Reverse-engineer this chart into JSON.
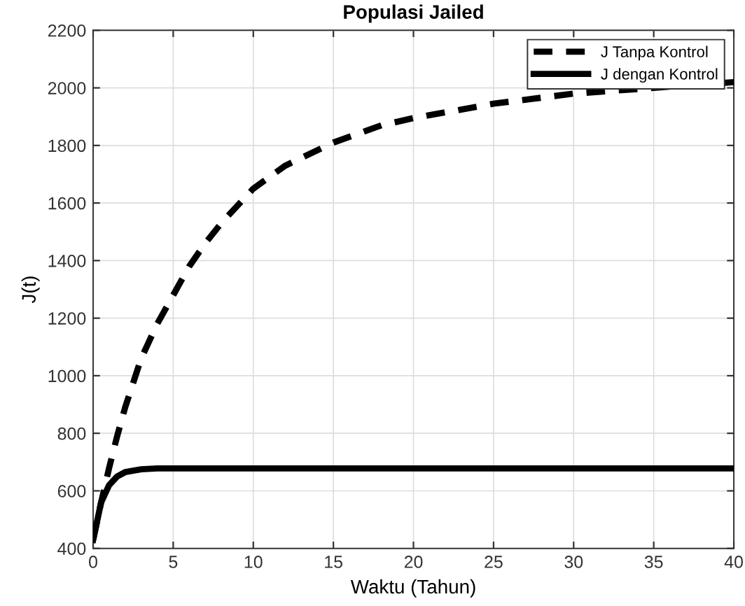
{
  "chart_data": {
    "type": "line",
    "title": "Populasi Jailed",
    "xlabel": "Waktu (Tahun)",
    "ylabel": "J(t)",
    "xlim": [
      0,
      40
    ],
    "xticks": [
      0,
      5,
      10,
      15,
      20,
      25,
      30,
      35,
      40
    ],
    "ylim": [
      400,
      2200
    ],
    "yticks": [
      400,
      600,
      800,
      1000,
      1200,
      1400,
      1600,
      1800,
      2000,
      2200
    ],
    "grid": true,
    "legend": "top right",
    "series": [
      {
        "name": "J Tanpa Kontrol",
        "color": "#000000",
        "line_style": "dashed",
        "x": [
          0,
          0.5,
          1,
          1.5,
          2,
          3,
          4,
          5,
          6,
          7,
          8,
          10,
          12,
          15,
          18,
          20,
          25,
          30,
          40
        ],
        "values": [
          430,
          560,
          680,
          790,
          890,
          1060,
          1180,
          1280,
          1380,
          1460,
          1530,
          1650,
          1730,
          1810,
          1870,
          1895,
          1945,
          1980,
          2020
        ]
      },
      {
        "name": "J dengan Kontrol",
        "color": "#000000",
        "line_style": "solid",
        "x": [
          0,
          0.5,
          1,
          1.5,
          2,
          3,
          4,
          10,
          20,
          30,
          40
        ],
        "values": [
          430,
          560,
          620,
          650,
          665,
          675,
          678,
          678,
          678,
          678,
          678
        ]
      }
    ]
  }
}
